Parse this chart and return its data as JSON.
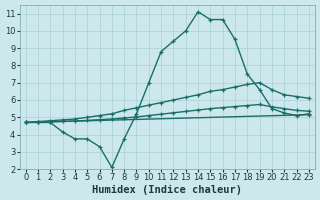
{
  "xlabel": "Humidex (Indice chaleur)",
  "bg_color": "#cde8ec",
  "grid_color": "#b0d4d8",
  "line_color": "#1a6e6a",
  "xlim": [
    -0.5,
    23.5
  ],
  "ylim": [
    2,
    11.5
  ],
  "xticks": [
    0,
    1,
    2,
    3,
    4,
    5,
    6,
    7,
    8,
    9,
    10,
    11,
    12,
    13,
    14,
    15,
    16,
    17,
    18,
    19,
    20,
    21,
    22,
    23
  ],
  "yticks": [
    2,
    3,
    4,
    5,
    6,
    7,
    8,
    9,
    10,
    11
  ],
  "line1_x": [
    0,
    1,
    2,
    3,
    4,
    5,
    6,
    7,
    8,
    9,
    10,
    11,
    12,
    13,
    14,
    15,
    16,
    17,
    18,
    19,
    20,
    21,
    22,
    23
  ],
  "line1_y": [
    4.7,
    4.7,
    4.7,
    4.15,
    3.75,
    3.75,
    3.3,
    2.1,
    3.75,
    5.2,
    7.0,
    8.8,
    9.4,
    10.0,
    11.1,
    10.65,
    10.65,
    9.5,
    7.5,
    6.6,
    5.5,
    5.25,
    5.1,
    5.2
  ],
  "line2_x": [
    0,
    1,
    2,
    3,
    4,
    5,
    6,
    7,
    8,
    9,
    10,
    11,
    12,
    13,
    14,
    15,
    16,
    17,
    18,
    19,
    20,
    21,
    22,
    23
  ],
  "line2_y": [
    4.7,
    4.75,
    4.8,
    4.85,
    4.9,
    5.0,
    5.1,
    5.2,
    5.4,
    5.55,
    5.7,
    5.85,
    6.0,
    6.15,
    6.3,
    6.5,
    6.6,
    6.75,
    6.9,
    7.0,
    6.6,
    6.3,
    6.2,
    6.1
  ],
  "line3_x": [
    0,
    1,
    2,
    3,
    4,
    5,
    6,
    7,
    8,
    9,
    10,
    11,
    12,
    13,
    14,
    15,
    16,
    17,
    18,
    19,
    20,
    21,
    22,
    23
  ],
  "line3_y": [
    4.7,
    4.72,
    4.74,
    4.76,
    4.78,
    4.82,
    4.86,
    4.9,
    4.96,
    5.02,
    5.1,
    5.18,
    5.26,
    5.34,
    5.42,
    5.5,
    5.56,
    5.62,
    5.68,
    5.74,
    5.6,
    5.5,
    5.4,
    5.35
  ],
  "line4_x": [
    0,
    23
  ],
  "line4_y": [
    4.7,
    5.15
  ],
  "marker_size": 3.5,
  "linewidth": 1.0,
  "tick_fontsize": 6,
  "xlabel_fontsize": 7.5
}
